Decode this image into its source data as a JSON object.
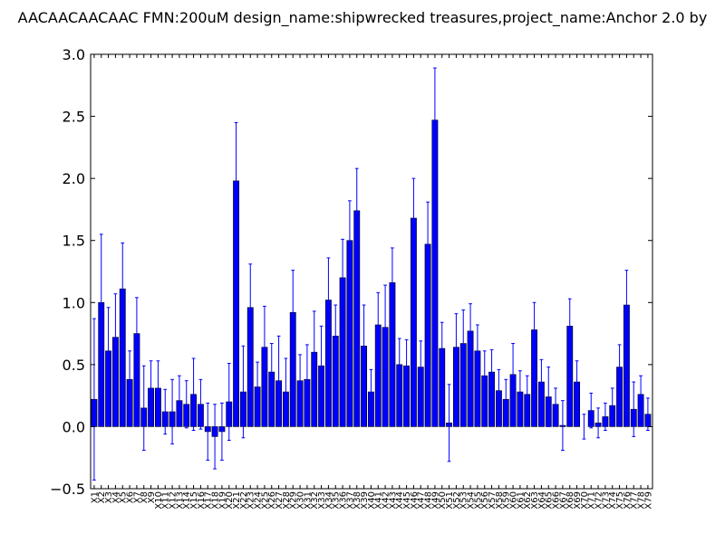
{
  "chart_data": {
    "type": "bar",
    "title": "AACAACAACAAC  FMN:200uM  design_name:shipwrecked treasures,project_name:Anchor 2.0 by",
    "xlabel": "",
    "ylabel": "",
    "ylim": [
      -0.5,
      3.0
    ],
    "yticks": [
      "−0.5",
      "0.0",
      "0.5",
      "1.0",
      "1.5",
      "2.0",
      "2.5",
      "3.0"
    ],
    "ytick_values": [
      -0.5,
      0.0,
      0.5,
      1.0,
      1.5,
      2.0,
      2.5,
      3.0
    ],
    "grid": false,
    "bar_color": "#0000ff",
    "error_color": "#0000ff",
    "categories": [
      "X1",
      "X2",
      "X3",
      "X4",
      "X5",
      "X6",
      "X7",
      "X8",
      "X9",
      "X10",
      "X11",
      "X12",
      "X13",
      "X14",
      "X15",
      "X16",
      "X17",
      "X18",
      "X19",
      "X20",
      "X21",
      "X22",
      "X23",
      "X24",
      "X25",
      "X26",
      "X27",
      "X28",
      "X29",
      "X30",
      "X31",
      "X32",
      "X33",
      "X34",
      "X35",
      "X36",
      "X37",
      "X38",
      "X39",
      "X40",
      "X41",
      "X42",
      "X43",
      "X44",
      "X45",
      "X46",
      "X47",
      "X48",
      "X49",
      "X50",
      "X51",
      "X52",
      "X53",
      "X54",
      "X55",
      "X56",
      "X57",
      "X58",
      "X59",
      "X60",
      "X61",
      "X62",
      "X63",
      "X64",
      "X65",
      "X66",
      "X67",
      "X68",
      "X69",
      "X70",
      "X71",
      "X72",
      "X73",
      "X74",
      "X75",
      "X76",
      "X77",
      "X78",
      "X79"
    ],
    "values": [
      0.22,
      1.0,
      0.61,
      0.72,
      1.11,
      0.38,
      0.75,
      0.15,
      0.31,
      0.31,
      0.12,
      0.12,
      0.21,
      0.18,
      0.26,
      0.18,
      -0.04,
      -0.08,
      -0.04,
      0.2,
      1.98,
      0.28,
      0.96,
      0.32,
      0.64,
      0.44,
      0.37,
      0.28,
      0.92,
      0.37,
      0.38,
      0.6,
      0.49,
      1.02,
      0.73,
      1.2,
      1.5,
      1.74,
      0.65,
      0.28,
      0.82,
      0.8,
      1.16,
      0.5,
      0.49,
      1.68,
      0.48,
      1.47,
      2.47,
      0.63,
      0.03,
      0.64,
      0.67,
      0.77,
      0.61,
      0.41,
      0.44,
      0.29,
      0.22,
      0.42,
      0.28,
      0.26,
      0.78,
      0.36,
      0.24,
      0.18,
      0.01,
      0.81,
      0.36,
      0.0,
      0.13,
      0.03,
      0.08,
      0.17,
      0.48,
      0.98,
      0.14,
      0.26,
      0.1
    ],
    "errors": [
      0.65,
      0.55,
      0.35,
      0.35,
      0.37,
      0.23,
      0.29,
      0.34,
      0.22,
      0.22,
      0.18,
      0.26,
      0.2,
      0.19,
      0.29,
      0.2,
      0.23,
      0.26,
      0.23,
      0.31,
      0.47,
      0.37,
      0.35,
      0.2,
      0.33,
      0.23,
      0.36,
      0.27,
      0.34,
      0.21,
      0.28,
      0.33,
      0.32,
      0.34,
      0.25,
      0.31,
      0.32,
      0.34,
      0.33,
      0.18,
      0.26,
      0.34,
      0.28,
      0.21,
      0.21,
      0.32,
      0.21,
      0.34,
      0.42,
      0.21,
      0.31,
      0.27,
      0.27,
      0.22,
      0.21,
      0.2,
      0.18,
      0.17,
      0.16,
      0.25,
      0.17,
      0.15,
      0.22,
      0.18,
      0.24,
      0.13,
      0.2,
      0.22,
      0.17,
      0.1,
      0.14,
      0.12,
      0.11,
      0.14,
      0.18,
      0.28,
      0.22,
      0.15,
      0.13
    ]
  }
}
